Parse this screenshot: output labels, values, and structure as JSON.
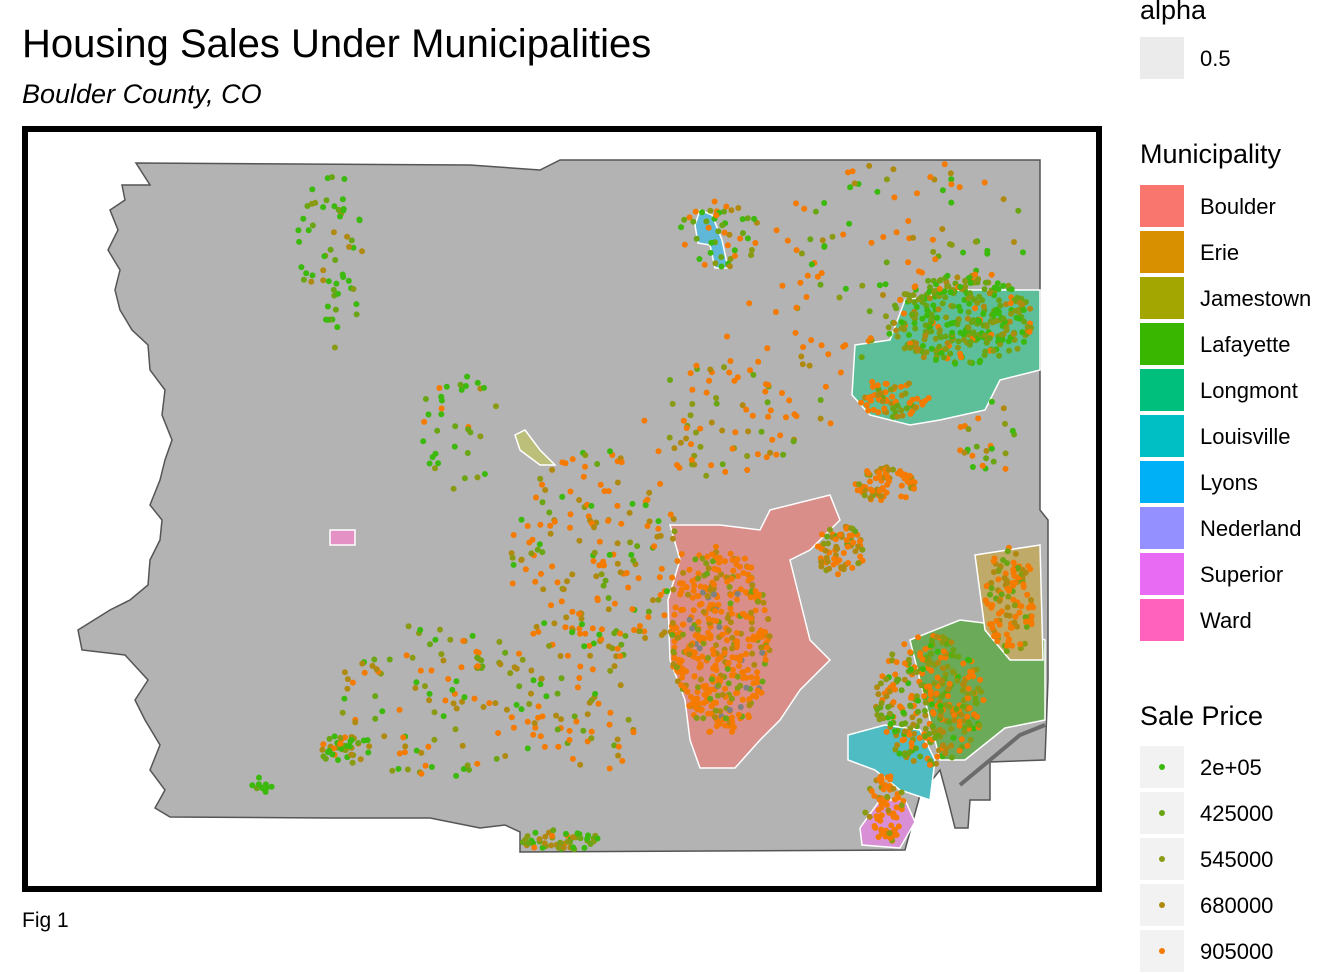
{
  "title": "Housing Sales Under Municipalities",
  "subtitle": "Boulder County, CO",
  "caption": "Fig 1",
  "legend_alpha": {
    "title": "alpha",
    "label": "0.5"
  },
  "legend_municipality": {
    "title": "Municipality",
    "items": [
      {
        "label": "Boulder",
        "color": "#f8766d"
      },
      {
        "label": "Erie",
        "color": "#d89000"
      },
      {
        "label": "Jamestown",
        "color": "#a3a500"
      },
      {
        "label": "Lafayette",
        "color": "#39b600"
      },
      {
        "label": "Longmont",
        "color": "#00bf7d"
      },
      {
        "label": "Louisville",
        "color": "#00bfc4"
      },
      {
        "label": "Lyons",
        "color": "#00b0f6"
      },
      {
        "label": "Nederland",
        "color": "#9590ff"
      },
      {
        "label": "Superior",
        "color": "#e76bf3"
      },
      {
        "label": "Ward",
        "color": "#ff62bc"
      }
    ]
  },
  "legend_price": {
    "title": "Sale Price",
    "items": [
      {
        "label": "2e+05",
        "color": "#3bb90c"
      },
      {
        "label": "425000",
        "color": "#6aa514"
      },
      {
        "label": "545000",
        "color": "#8a9a12"
      },
      {
        "label": "680000",
        "color": "#b08a10"
      },
      {
        "label": "905000",
        "color": "#f47a00"
      }
    ]
  },
  "map": {
    "county_fill": "#b3b3b3",
    "county_border": "#555555",
    "municipality_border": "#ffffff"
  }
}
